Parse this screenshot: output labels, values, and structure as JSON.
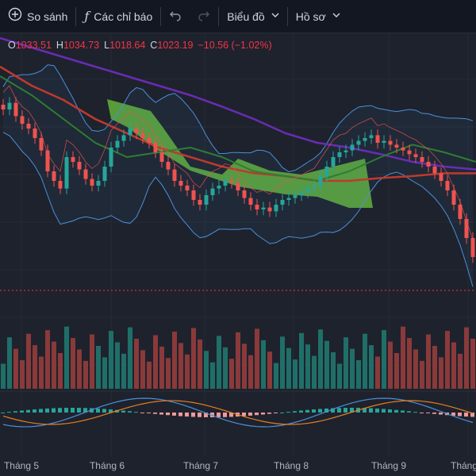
{
  "toolbar": {
    "compare_label": "So sánh",
    "indicators_label": "Các chỉ báo",
    "chart_label": "Biểu đồ",
    "profile_label": "Hồ sơ"
  },
  "legend": {
    "o_key": "O",
    "o_val": "1033.51",
    "h_key": "H",
    "h_val": "1034.73",
    "l_key": "L",
    "l_val": "1018.64",
    "c_key": "C",
    "c_val": "1023.19",
    "change": "−10.56 (−1.02%)"
  },
  "colors": {
    "up": "#26a69a",
    "down": "#ef5350",
    "background": "#1e222d",
    "ma_long": "#6a2cb3",
    "ma_mid": "#c0392b",
    "ma_short": "#2e7d32",
    "bollinger": "#4a90d9",
    "cloud": "#5ea83c",
    "macd": "#4a90d9",
    "signal": "#e67e22"
  },
  "chart_data": {
    "type": "candlestick",
    "x_axis_labels": [
      "Tháng 5",
      "Tháng 6",
      "Tháng 7",
      "Tháng 8",
      "Tháng 9",
      "Tháng"
    ],
    "price_range": [
      920,
      1170
    ],
    "closes": [
      1105,
      1112,
      1098,
      1090,
      1085,
      1075,
      1062,
      1040,
      1030,
      1022,
      1055,
      1050,
      1042,
      1032,
      1025,
      1030,
      1045,
      1065,
      1072,
      1078,
      1085,
      1080,
      1075,
      1070,
      1060,
      1050,
      1042,
      1030,
      1025,
      1020,
      1010,
      1005,
      1015,
      1022,
      1025,
      1030,
      1028,
      1020,
      1012,
      1005,
      1000,
      1002,
      998,
      1005,
      1010,
      1012,
      1015,
      1018,
      1022,
      1025,
      1035,
      1045,
      1055,
      1060,
      1062,
      1068,
      1072,
      1075,
      1078,
      1070,
      1072,
      1068,
      1065,
      1062,
      1058,
      1055,
      1050,
      1045,
      1038,
      1030,
      1020,
      1005,
      990,
      970,
      950
    ],
    "ma_long_y": [
      1180,
      1170,
      1160,
      1150,
      1140,
      1130,
      1120,
      1108,
      1095,
      1080,
      1070,
      1065,
      1058,
      1050,
      1045,
      1042
    ],
    "ma_mid_y": [
      1150,
      1130,
      1115,
      1095,
      1080,
      1065,
      1055,
      1045,
      1038,
      1035,
      1030,
      1030,
      1033,
      1035,
      1038,
      1038
    ],
    "ma_short_y": [
      1140,
      1120,
      1095,
      1070,
      1055,
      1060,
      1065,
      1055,
      1040,
      1035,
      1030,
      1040,
      1055,
      1068,
      1060,
      1050
    ],
    "volume_range": [
      0,
      100
    ],
    "macd_range": [
      -1,
      1
    ]
  }
}
